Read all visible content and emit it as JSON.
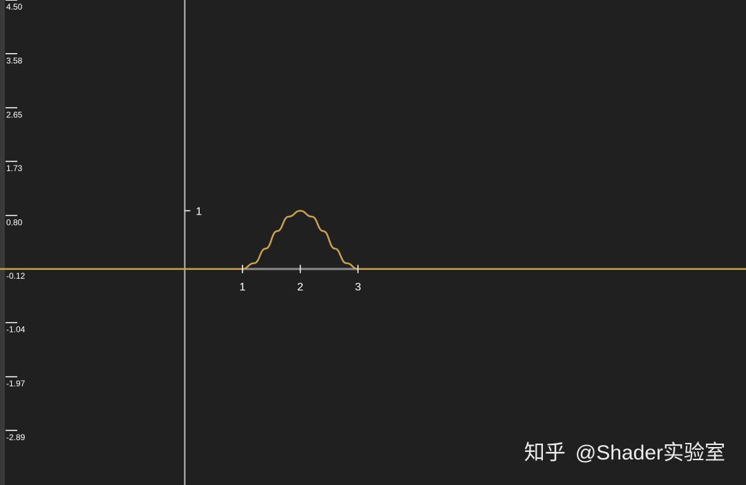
{
  "chart_data": {
    "type": "line",
    "title": "",
    "xlabel": "",
    "ylabel": "",
    "xlim": [
      -3.2,
      9.72
    ],
    "ylim": [
      -3.71,
      4.62
    ],
    "y_ruler_ticks": [
      "4.50",
      "3.58",
      "2.65",
      "1.73",
      "0.80",
      "-0.12",
      "-1.04",
      "-1.97",
      "-2.89"
    ],
    "y_ruler_values": [
      4.5,
      3.58,
      2.65,
      1.73,
      0.8,
      -0.12,
      -1.04,
      -1.97,
      -2.89
    ],
    "y_axis_ticks": [
      {
        "value": 1,
        "label": "1"
      }
    ],
    "x_axis_ticks": [
      {
        "value": 1,
        "label": "1"
      },
      {
        "value": 2,
        "label": "2"
      },
      {
        "value": 3,
        "label": "3"
      }
    ],
    "series": [
      {
        "color": "#c9a24e",
        "x": [
          -3.2,
          1.0,
          1.2,
          1.4,
          1.6,
          1.8,
          2.0,
          2.2,
          2.4,
          2.6,
          2.8,
          3.0,
          9.72
        ],
        "y": [
          0,
          0,
          0.1,
          0.35,
          0.65,
          0.9,
          1.0,
          0.9,
          0.65,
          0.35,
          0.1,
          0,
          0
        ]
      }
    ],
    "highlight_segment": {
      "x": [
        1,
        3
      ],
      "y": 0,
      "color": "#8a8a8a"
    },
    "colors": {
      "background": "#202020",
      "axis": "#bdbdbd",
      "curve": "#c9a24e"
    },
    "grid": false
  },
  "watermark": {
    "logo": "知乎",
    "text": "@Shader实验室"
  }
}
